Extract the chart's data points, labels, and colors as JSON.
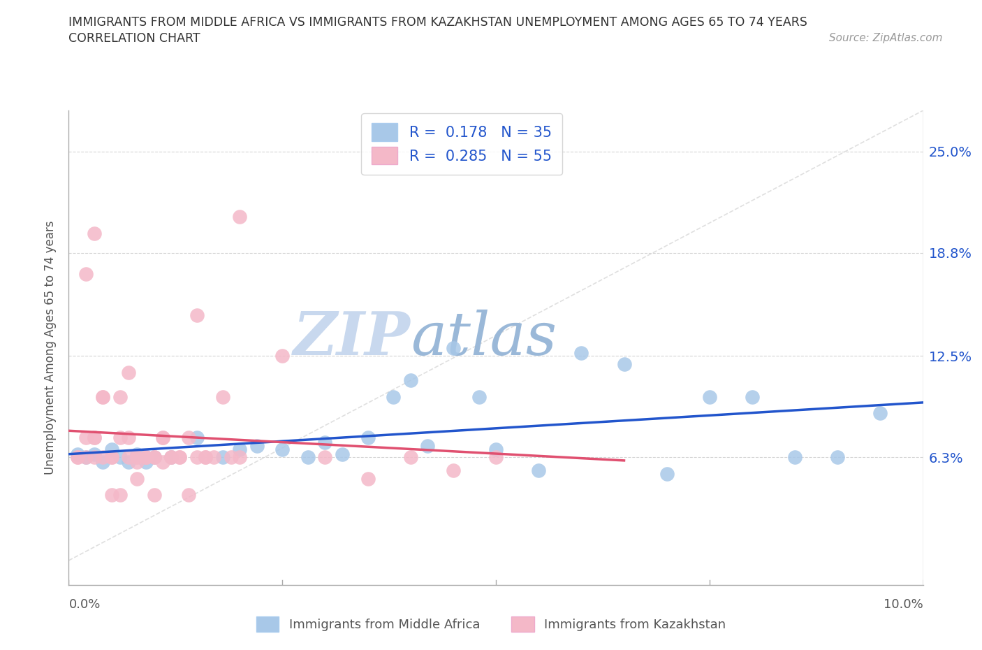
{
  "title_line1": "IMMIGRANTS FROM MIDDLE AFRICA VS IMMIGRANTS FROM KAZAKHSTAN UNEMPLOYMENT AMONG AGES 65 TO 74 YEARS",
  "title_line2": "CORRELATION CHART",
  "source": "Source: ZipAtlas.com",
  "ylabel": "Unemployment Among Ages 65 to 74 years",
  "y_ticks": [
    0.063,
    0.125,
    0.188,
    0.25
  ],
  "y_tick_labels": [
    "6.3%",
    "12.5%",
    "18.8%",
    "25.0%"
  ],
  "xlim": [
    0.0,
    0.1
  ],
  "ylim": [
    -0.015,
    0.275
  ],
  "x_tick_labels": [
    "0.0%",
    "10.0%"
  ],
  "series_blue": {
    "name": "Immigrants from Middle Africa",
    "color": "#a8c8e8",
    "border_color": "#7bafd4",
    "x": [
      0.001,
      0.002,
      0.003,
      0.004,
      0.005,
      0.006,
      0.007,
      0.008,
      0.009,
      0.01,
      0.012,
      0.015,
      0.018,
      0.02,
      0.022,
      0.025,
      0.028,
      0.03,
      0.032,
      0.035,
      0.038,
      0.04,
      0.042,
      0.045,
      0.048,
      0.05,
      0.055,
      0.06,
      0.065,
      0.07,
      0.075,
      0.08,
      0.085,
      0.09,
      0.095
    ],
    "y": [
      0.065,
      0.063,
      0.065,
      0.06,
      0.068,
      0.063,
      0.06,
      0.065,
      0.06,
      0.063,
      0.063,
      0.075,
      0.063,
      0.068,
      0.07,
      0.068,
      0.063,
      0.072,
      0.065,
      0.075,
      0.1,
      0.11,
      0.07,
      0.13,
      0.1,
      0.068,
      0.055,
      0.127,
      0.12,
      0.053,
      0.1,
      0.1,
      0.063,
      0.063,
      0.09
    ]
  },
  "series_pink": {
    "name": "Immigrants from Kazakhstan",
    "color": "#f4b8c8",
    "border_color": "#e890a8",
    "x": [
      0.001,
      0.002,
      0.003,
      0.004,
      0.005,
      0.006,
      0.007,
      0.008,
      0.009,
      0.01,
      0.011,
      0.012,
      0.013,
      0.014,
      0.015,
      0.016,
      0.017,
      0.018,
      0.019,
      0.02,
      0.001,
      0.002,
      0.003,
      0.003,
      0.004,
      0.005,
      0.006,
      0.007,
      0.008,
      0.008,
      0.009,
      0.01,
      0.011,
      0.012,
      0.013,
      0.014,
      0.015,
      0.016,
      0.002,
      0.003,
      0.004,
      0.005,
      0.006,
      0.007,
      0.008,
      0.009,
      0.01,
      0.011,
      0.02,
      0.025,
      0.03,
      0.035,
      0.04,
      0.045,
      0.05
    ],
    "y": [
      0.063,
      0.063,
      0.075,
      0.063,
      0.063,
      0.1,
      0.115,
      0.063,
      0.063,
      0.063,
      0.075,
      0.063,
      0.063,
      0.075,
      0.15,
      0.063,
      0.063,
      0.1,
      0.063,
      0.063,
      0.063,
      0.075,
      0.063,
      0.075,
      0.1,
      0.063,
      0.075,
      0.063,
      0.063,
      0.05,
      0.063,
      0.063,
      0.075,
      0.063,
      0.063,
      0.04,
      0.063,
      0.063,
      0.175,
      0.2,
      0.1,
      0.04,
      0.04,
      0.075,
      0.06,
      0.063,
      0.04,
      0.06,
      0.21,
      0.125,
      0.063,
      0.05,
      0.063,
      0.055,
      0.063
    ]
  },
  "trendline_blue_color": "#2255cc",
  "trendline_pink_color": "#e05070",
  "trendline_diag_color": "#d8d8d8",
  "background_color": "#ffffff",
  "grid_color": "#d0d0d0",
  "legend_text_color": "#2255cc",
  "watermark_zip_color": "#c8d8ee",
  "watermark_atlas_color": "#9ab8d8"
}
